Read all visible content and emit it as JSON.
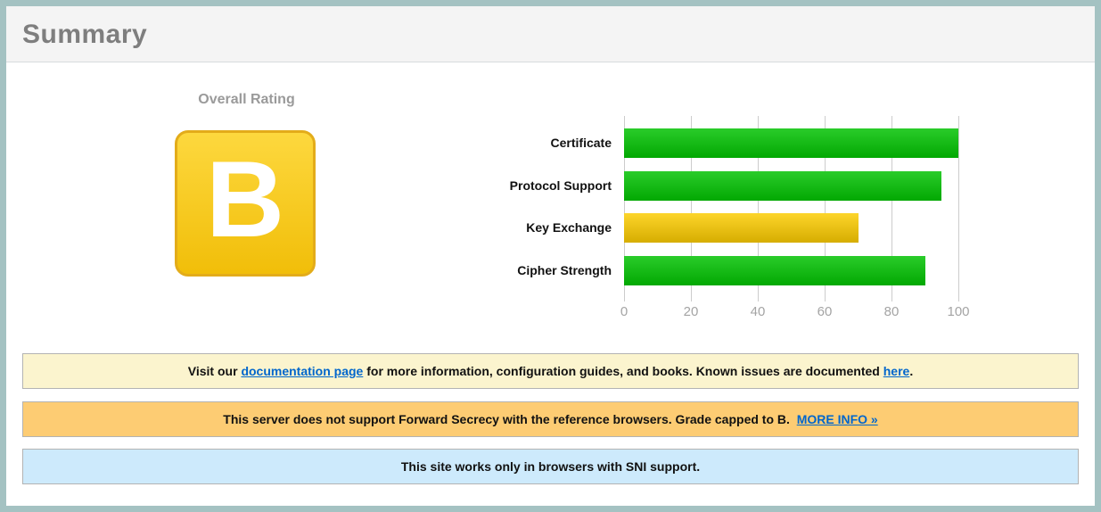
{
  "header": {
    "title": "Summary"
  },
  "rating": {
    "label": "Overall Rating",
    "grade": "B"
  },
  "chart_data": {
    "type": "bar",
    "orientation": "horizontal",
    "categories": [
      "Certificate",
      "Protocol Support",
      "Key Exchange",
      "Cipher Strength"
    ],
    "values": [
      100,
      95,
      70,
      90
    ],
    "bar_colors": [
      "green",
      "green",
      "yellow",
      "green"
    ],
    "title": "",
    "xlabel": "",
    "ylabel": "",
    "xlim": [
      0,
      100
    ],
    "xticks": [
      0,
      20,
      40,
      60,
      80,
      100
    ],
    "grid": true,
    "legend": false
  },
  "notices": [
    {
      "name": "notice-documentation",
      "bg": "#fbf4ce",
      "segments": [
        {
          "text": "Visit our "
        },
        {
          "text": "documentation page",
          "link": true,
          "name": "documentation-page-link"
        },
        {
          "text": " for more information, configuration guides, and books. Known issues are documented "
        },
        {
          "text": "here",
          "link": true,
          "name": "known-issues-here-link"
        },
        {
          "text": "."
        }
      ]
    },
    {
      "name": "notice-forward-secrecy",
      "bg": "#fdcc73",
      "segments": [
        {
          "text": "This server does not support Forward Secrecy with the reference browsers. Grade capped to B.  "
        },
        {
          "text": "MORE INFO »",
          "link": true,
          "name": "more-info-link"
        }
      ]
    },
    {
      "name": "notice-sni",
      "bg": "#cdeafc",
      "segments": [
        {
          "text": "This site works only in browsers with SNI support."
        }
      ]
    }
  ],
  "colors": {
    "page_border": "#a4c2c2",
    "grade_badge_top": "#fdd83e",
    "grade_badge_bottom": "#f1be09",
    "grade_badge_border": "#e3ac1a",
    "bar_green_top": "#2acc2a",
    "bar_green_bottom": "#02a802",
    "bar_yellow_top": "#fdd52b",
    "bar_yellow_bottom": "#d6ad00",
    "link": "#0066cc",
    "grid": "#cccccc"
  }
}
